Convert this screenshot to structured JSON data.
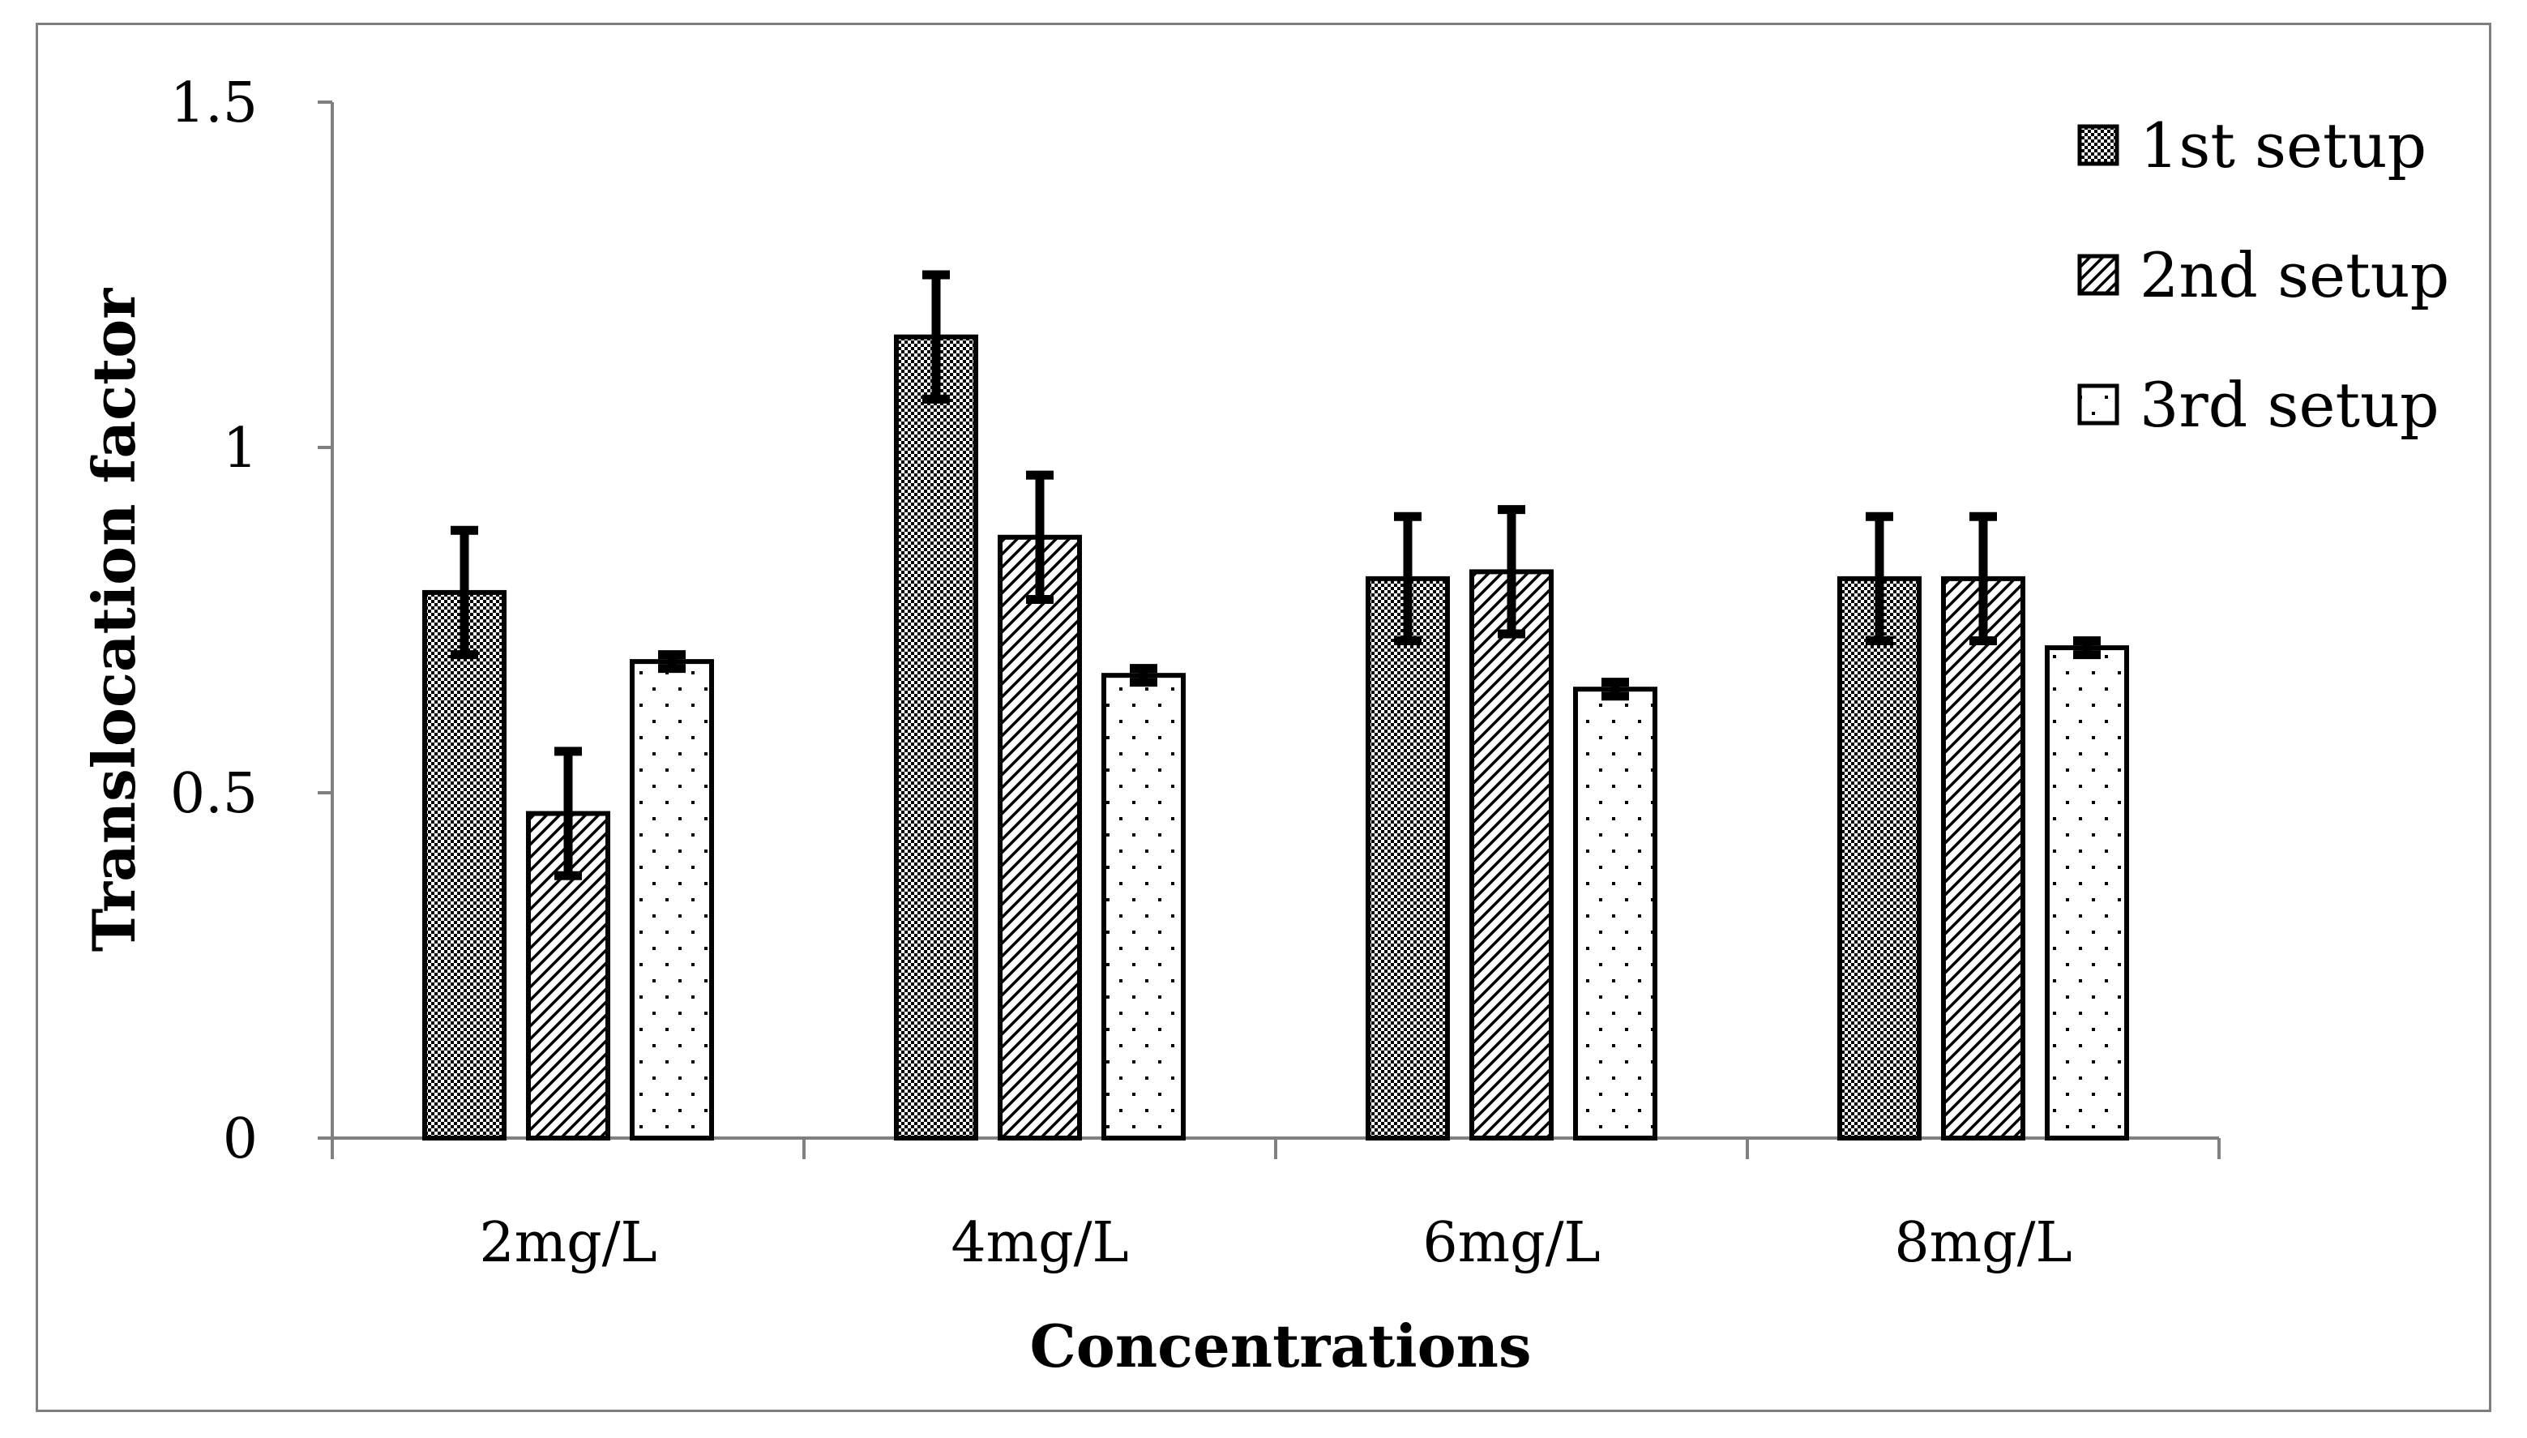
{
  "chart_data": {
    "type": "bar",
    "title": "",
    "xlabel": "Concentrations",
    "ylabel": "Translocation factor",
    "ylim": [
      0,
      1.5
    ],
    "yticks": [
      "0",
      "0.5",
      "1",
      "1.5"
    ],
    "yticks_values": [
      0,
      0.5,
      1,
      1.5
    ],
    "categories": [
      "2mg/L",
      "4mg/L",
      "6mg/L",
      "8mg/L"
    ],
    "series": [
      {
        "name": "1st setup",
        "pattern": "checker",
        "values": [
          0.79,
          1.16,
          0.81,
          0.81
        ],
        "errors": [
          0.09,
          0.09,
          0.09,
          0.09
        ]
      },
      {
        "name": "2nd setup",
        "pattern": "diagonal",
        "values": [
          0.47,
          0.87,
          0.82,
          0.81
        ],
        "errors": [
          0.09,
          0.09,
          0.09,
          0.09
        ]
      },
      {
        "name": "3rd setup",
        "pattern": "dots",
        "values": [
          0.69,
          0.67,
          0.65,
          0.71
        ],
        "errors": [
          0.01,
          0.01,
          0.01,
          0.01
        ]
      }
    ],
    "legend_position": "top-right",
    "grid": false
  },
  "colors": {
    "bar_stroke": "#000000",
    "axis": "#808080",
    "text": "#000000"
  }
}
